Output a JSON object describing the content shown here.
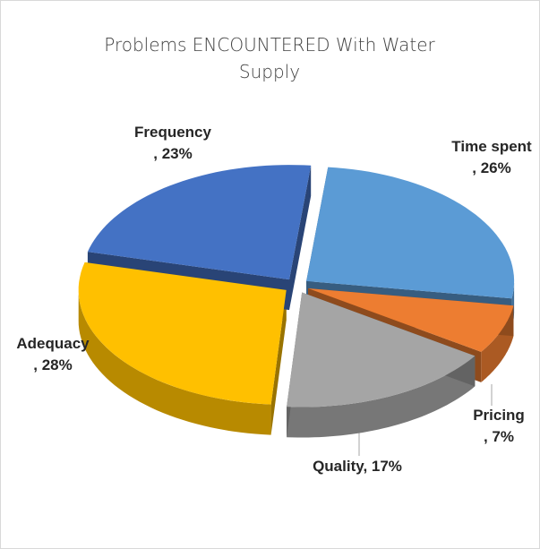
{
  "chart_data": {
    "type": "pie3d",
    "title": "Problems ENCOUNTERED With Water Supply",
    "categories": [
      "Time spent",
      "Pricing",
      "Quality",
      "Adequacy",
      "Frequency"
    ],
    "values": [
      26,
      7,
      17,
      28,
      23
    ],
    "value_labels": [
      ", 26%",
      ", 7%",
      ", 17%",
      ", 28%",
      ", 23%"
    ],
    "colors": [
      "#5b9bd5",
      "#ed7d31",
      "#a5a5a5",
      "#ffc000",
      "#4472c4"
    ]
  }
}
